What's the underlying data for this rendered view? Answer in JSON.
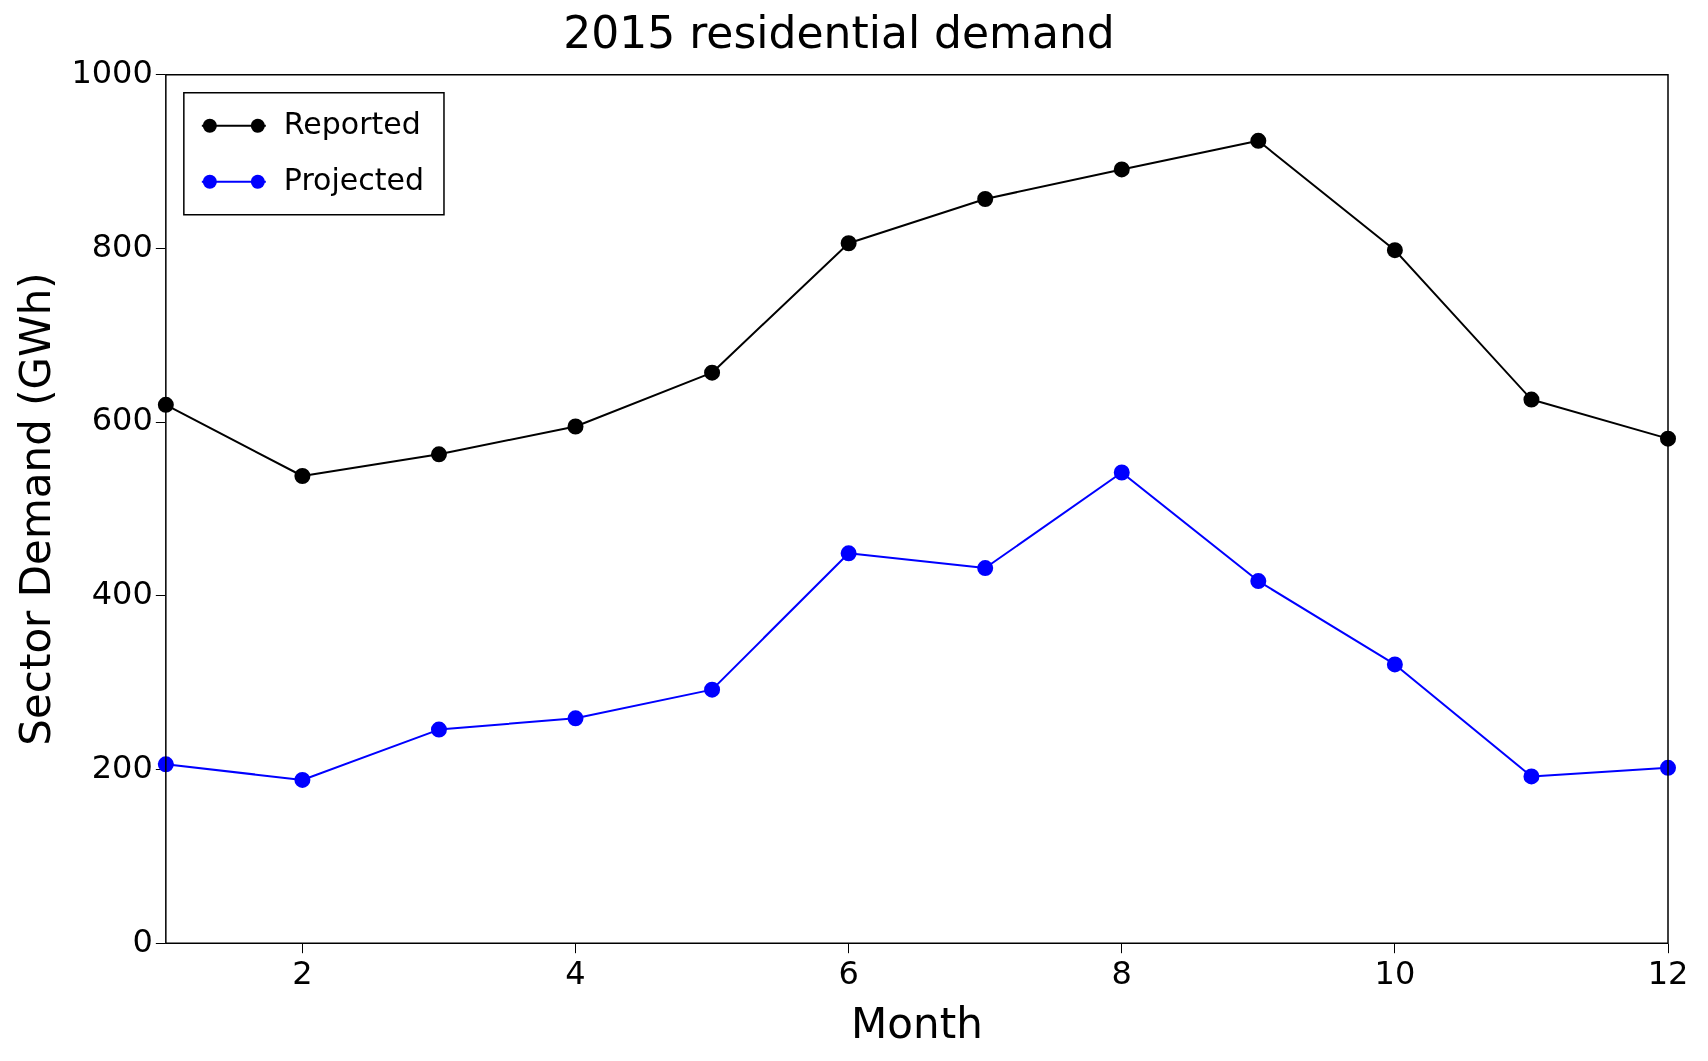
{
  "chart_data": {
    "type": "line",
    "title": "2015 residential demand",
    "xlabel": "Month",
    "ylabel": "Sector Demand (GWh)",
    "x": [
      1,
      2,
      3,
      4,
      5,
      6,
      7,
      8,
      9,
      10,
      11,
      12
    ],
    "series": [
      {
        "name": "Reported",
        "color": "#000000",
        "values": [
          620,
          538,
          563,
          595,
          657,
          806,
          857,
          891,
          924,
          798,
          626,
          581
        ]
      },
      {
        "name": "Projected",
        "color": "#0000ff",
        "values": [
          206,
          188,
          246,
          259,
          292,
          449,
          432,
          542,
          417,
          321,
          192,
          202
        ]
      }
    ],
    "xlim": [
      1,
      12
    ],
    "xticks": [
      2,
      4,
      6,
      8,
      10,
      12
    ],
    "ylim": [
      0,
      1000
    ],
    "yticks": [
      0,
      200,
      400,
      600,
      800,
      1000
    ],
    "grid": false,
    "legend": "top left",
    "marker": "circle",
    "line_style": "solid"
  }
}
